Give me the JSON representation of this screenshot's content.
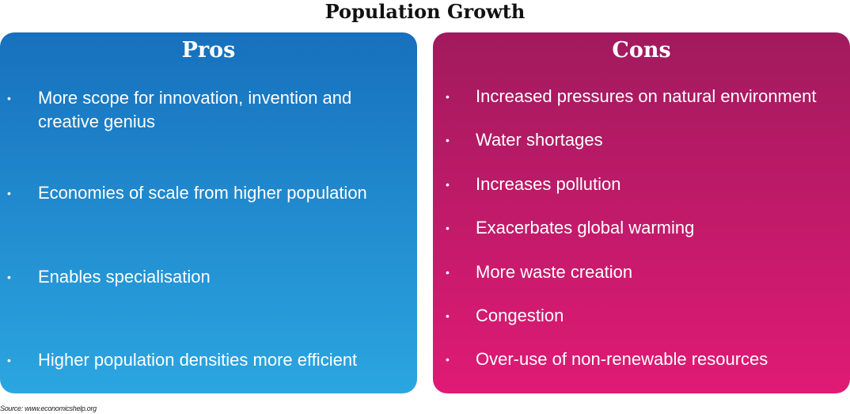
{
  "title": "Population Growth",
  "pros": {
    "heading": "Pros",
    "items": [
      "More scope for innovation, invention and creative genius",
      "Economies of scale from higher population",
      "Enables specialisation",
      "Higher population densities more efficient"
    ]
  },
  "cons": {
    "heading": "Cons",
    "items": [
      "Increased pressures on natural environment",
      "Water shortages",
      "Increases pollution",
      "Exacerbates global warming",
      "More waste creation",
      "Congestion",
      "Over-use of non-renewable resources"
    ]
  },
  "bullet": "•",
  "source": "Source: www.economicshelp.org",
  "colors": {
    "pros_top": "#1770bd",
    "pros_bottom": "#2ba6e0",
    "cons_top": "#a11a5e",
    "cons_bottom": "#e01a75",
    "text": "#ffffff"
  }
}
